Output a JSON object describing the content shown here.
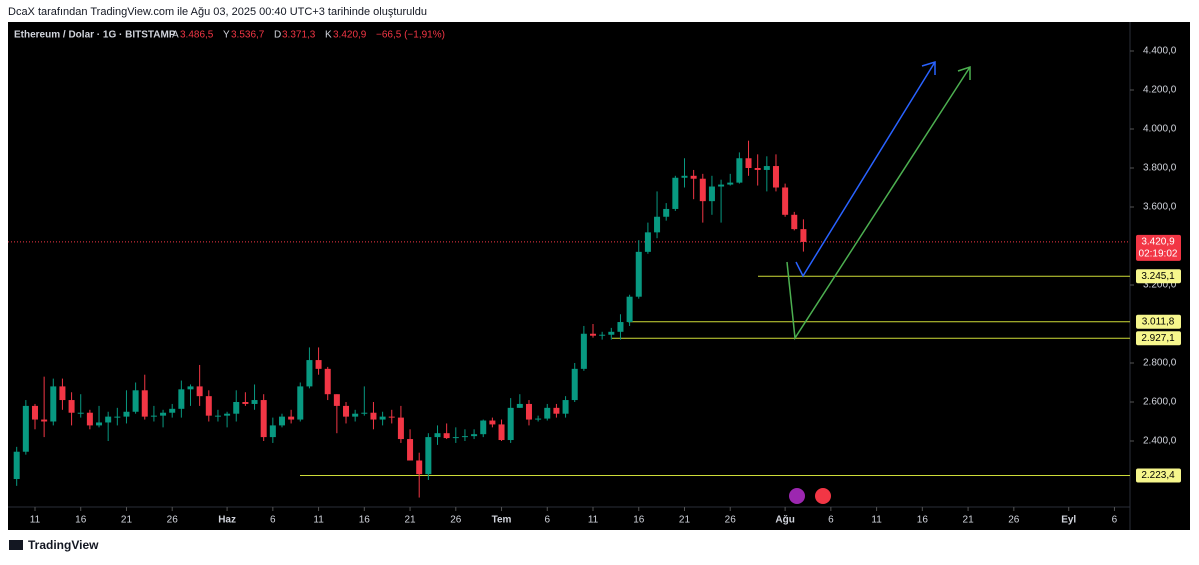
{
  "header": {
    "caption": "DcaX tarafından TradingView.com ile Ağu 03, 2025 00:40 UTC+3 tarihinde oluşturuldu"
  },
  "chart_data": {
    "type": "candlestick",
    "title": "Ethereum / Dolar · 1G · BITSTAMP",
    "legend": {
      "open_key": "A",
      "open": {
        "value": 3486.5,
        "label": "3.486,5"
      },
      "high_key": "Y",
      "high": {
        "value": 3536.7,
        "label": "3.536,7"
      },
      "low_key": "D",
      "low": {
        "value": 3371.3,
        "label": "3.371,3"
      },
      "close_key": "K",
      "close": {
        "value": 3420.9,
        "label": "3.420,9"
      },
      "change": {
        "value": -66.5,
        "label": "−66,5 (−1,91%)"
      }
    },
    "up_color": "#089981",
    "down_color": "#f23645",
    "candles": {
      "open": [
        2205,
        2345,
        2580,
        2510,
        2500,
        2680,
        2610,
        2545,
        2545,
        2480,
        2495,
        2525,
        2525,
        2550,
        2660,
        2525,
        2530,
        2545,
        2565,
        2665,
        2680,
        2630,
        2530,
        2530,
        2540,
        2600,
        2590,
        2610,
        2420,
        2480,
        2525,
        2510,
        2680,
        2815,
        2770,
        2640,
        2580,
        2525,
        2540,
        2545,
        2510,
        2525,
        2520,
        2410,
        2300,
        2230,
        2420,
        2440,
        2415,
        2420,
        2425,
        2435,
        2505,
        2485,
        2405,
        2570,
        2590,
        2510,
        2515,
        2570,
        2540,
        2610,
        2770,
        2950,
        2940,
        2945,
        2960,
        3010,
        3140,
        3370,
        3470,
        3550,
        3590,
        3750,
        3760,
        3745,
        3630,
        3705,
        3715,
        3725,
        3850,
        3800,
        3790,
        3810,
        3700,
        3560,
        3486.5
      ],
      "high": [
        2370,
        2610,
        2590,
        2730,
        2720,
        2720,
        2650,
        2640,
        2560,
        2580,
        2550,
        2570,
        2660,
        2700,
        2740,
        2580,
        2560,
        2590,
        2710,
        2690,
        2790,
        2660,
        2560,
        2550,
        2660,
        2650,
        2690,
        2640,
        2520,
        2540,
        2560,
        2700,
        2880,
        2880,
        2780,
        2640,
        2600,
        2560,
        2680,
        2600,
        2550,
        2560,
        2580,
        2460,
        2340,
        2440,
        2480,
        2490,
        2470,
        2460,
        2460,
        2510,
        2520,
        2510,
        2620,
        2640,
        2610,
        2530,
        2590,
        2590,
        2630,
        2800,
        2990,
        3000,
        2960,
        2980,
        3050,
        3150,
        3430,
        3520,
        3680,
        3620,
        3760,
        3850,
        3790,
        3770,
        3760,
        3740,
        3770,
        3880,
        3940,
        3870,
        3860,
        3870,
        3720,
        3575,
        3536.7
      ],
      "low": [
        2170,
        2330,
        2460,
        2420,
        2480,
        2560,
        2480,
        2520,
        2460,
        2470,
        2400,
        2480,
        2490,
        2540,
        2510,
        2500,
        2470,
        2520,
        2520,
        2580,
        2580,
        2500,
        2500,
        2470,
        2500,
        2580,
        2560,
        2400,
        2390,
        2470,
        2490,
        2500,
        2670,
        2740,
        2610,
        2440,
        2490,
        2500,
        2530,
        2460,
        2480,
        2490,
        2390,
        2300,
        2110,
        2200,
        2380,
        2410,
        2390,
        2400,
        2410,
        2420,
        2470,
        2400,
        2390,
        2570,
        2480,
        2500,
        2505,
        2520,
        2520,
        2600,
        2760,
        2930,
        2920,
        2920,
        2920,
        2990,
        3130,
        3360,
        3440,
        3530,
        3580,
        3700,
        3640,
        3520,
        3560,
        3520,
        3710,
        3720,
        3760,
        3710,
        3680,
        3680,
        3550,
        3480,
        3371.3
      ],
      "close": [
        2345,
        2580,
        2510,
        2500,
        2680,
        2610,
        2545,
        2545,
        2480,
        2495,
        2525,
        2525,
        2550,
        2660,
        2525,
        2530,
        2545,
        2565,
        2665,
        2680,
        2630,
        2530,
        2530,
        2540,
        2600,
        2590,
        2610,
        2420,
        2480,
        2525,
        2510,
        2680,
        2815,
        2770,
        2640,
        2580,
        2525,
        2540,
        2545,
        2510,
        2525,
        2520,
        2410,
        2300,
        2230,
        2420,
        2440,
        2415,
        2420,
        2425,
        2435,
        2505,
        2485,
        2405,
        2570,
        2590,
        2510,
        2515,
        2570,
        2540,
        2610,
        2770,
        2950,
        2940,
        2945,
        2960,
        3010,
        3140,
        3370,
        3470,
        3550,
        3590,
        3750,
        3760,
        3745,
        3630,
        3705,
        3715,
        3725,
        3850,
        3800,
        3790,
        3810,
        3700,
        3560,
        3486.5,
        3420.9
      ]
    },
    "last_price": {
      "value": 3420.9,
      "label": "3.420,9"
    },
    "countdown": "02:19:02",
    "levels": [
      {
        "value": 3245.1,
        "label": "3.245,1"
      },
      {
        "value": 3011.8,
        "label": "3.011,8"
      },
      {
        "value": 2927.1,
        "label": "2.927,1"
      },
      {
        "value": 2223.4,
        "label": "2.223,4"
      }
    ],
    "xlim": [
      -0.95,
      121.7
    ],
    "xticks": [
      {
        "value": 2,
        "label": "11"
      },
      {
        "value": 7,
        "label": "16"
      },
      {
        "value": 12,
        "label": "21"
      },
      {
        "value": 17,
        "label": "26"
      },
      {
        "value": 23,
        "label": "Haz"
      },
      {
        "value": 28,
        "label": "6"
      },
      {
        "value": 33,
        "label": "11"
      },
      {
        "value": 38,
        "label": "16"
      },
      {
        "value": 43,
        "label": "21"
      },
      {
        "value": 48,
        "label": "26"
      },
      {
        "value": 53,
        "label": "Tem"
      },
      {
        "value": 58,
        "label": "6"
      },
      {
        "value": 63,
        "label": "11"
      },
      {
        "value": 68,
        "label": "16"
      },
      {
        "value": 73,
        "label": "21"
      },
      {
        "value": 78,
        "label": "26"
      },
      {
        "value": 84,
        "label": "Ağu"
      },
      {
        "value": 89,
        "label": "6"
      },
      {
        "value": 94,
        "label": "11"
      },
      {
        "value": 99,
        "label": "16"
      },
      {
        "value": 104,
        "label": "21"
      },
      {
        "value": 109,
        "label": "26"
      },
      {
        "value": 115,
        "label": "Eyl"
      },
      {
        "value": 120,
        "label": "6"
      }
    ],
    "ylim": [
      2071.8,
      4548.7
    ],
    "yticks": [
      {
        "value": 4400,
        "label": "4.400,0"
      },
      {
        "value": 4200,
        "label": "4.200,0"
      },
      {
        "value": 4000,
        "label": "4.000,0"
      },
      {
        "value": 3800,
        "label": "3.800,0"
      },
      {
        "value": 3600,
        "label": "3.600,0"
      },
      {
        "value": 3200,
        "label": "3.200,0"
      },
      {
        "value": 2800,
        "label": "2.800,0"
      },
      {
        "value": 2600,
        "label": "2.600,0"
      },
      {
        "value": 2400,
        "label": "2.400,0"
      }
    ],
    "brand": "TradingView"
  }
}
